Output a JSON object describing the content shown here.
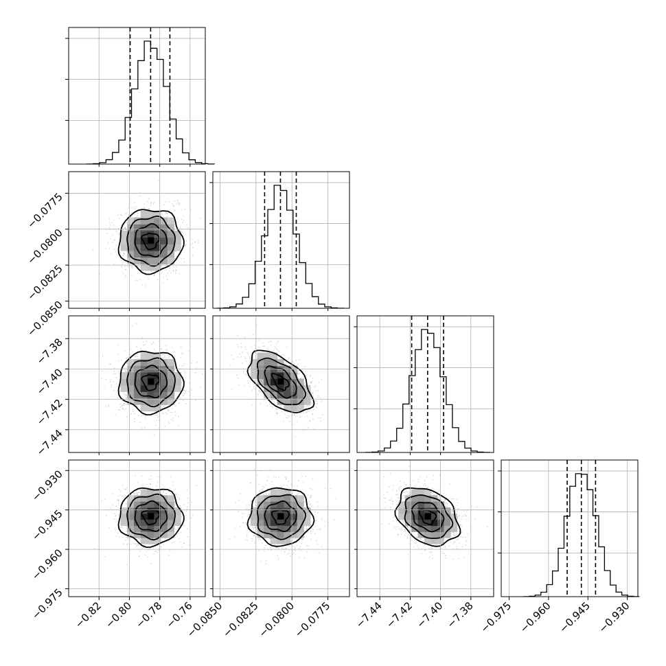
{
  "chart_data": {
    "type": "corner",
    "parameters": [
      {
        "mean": -0.786,
        "sd": 0.0105,
        "range": [
          -0.84,
          -0.75
        ],
        "ticks": [
          -0.82,
          -0.8,
          -0.78,
          -0.76
        ],
        "tick_labels": [
          "−0.82",
          "−0.80",
          "−0.78",
          "−0.76"
        ],
        "quantiles": [
          -0.7995,
          -0.786,
          -0.7733
        ]
      },
      {
        "mean": -0.0808,
        "sd": 0.0011,
        "range": [
          -0.0855,
          -0.076
        ],
        "ticks": [
          -0.085,
          -0.0825,
          -0.08,
          -0.0775
        ],
        "tick_labels": [
          "−0.0850",
          "−0.0825",
          "−0.0800",
          "−0.0775"
        ],
        "quantiles": [
          -0.0819,
          -0.0808,
          -0.0797
        ]
      },
      {
        "mean": -7.4085,
        "sd": 0.0102,
        "range": [
          -7.455,
          -7.365
        ],
        "ticks": [
          -7.44,
          -7.42,
          -7.4,
          -7.38
        ],
        "tick_labels": [
          "−7.44",
          "−7.42",
          "−7.40",
          "−7.38"
        ],
        "quantiles": [
          -7.419,
          -7.4085,
          -7.398
        ]
      },
      {
        "mean": -0.9475,
        "sd": 0.0055,
        "range": [
          -0.978,
          -0.926
        ],
        "ticks": [
          -0.975,
          -0.96,
          -0.945,
          -0.93
        ],
        "tick_labels": [
          "−0.975",
          "−0.960",
          "−0.945",
          "−0.930"
        ],
        "quantiles": [
          -0.9529,
          -0.9475,
          -0.9421
        ]
      }
    ],
    "correlations": {
      "1-0": 0.0,
      "2-0": 0.0,
      "2-1": -0.55,
      "3-0": 0.0,
      "3-1": 0.0,
      "3-2": -0.3
    },
    "histogram_bins": 20,
    "contour_levels_sigma": [
      0.5,
      1.0,
      1.5,
      2.0
    ],
    "grid": true,
    "colors": {
      "points": "#9a9a9a",
      "lines": "#000000"
    }
  }
}
